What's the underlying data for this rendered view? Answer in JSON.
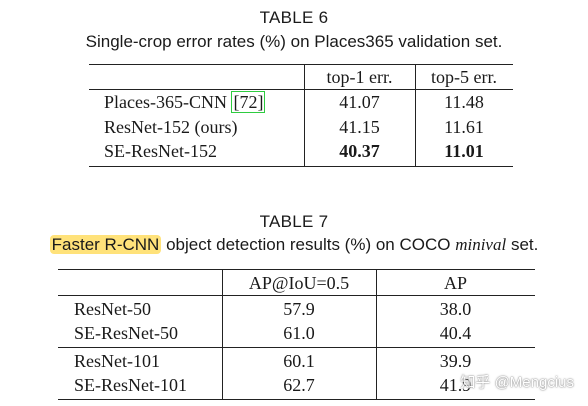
{
  "table6": {
    "label": "TABLE 6",
    "caption": "Single-crop error rates (%) on Places365 validation set.",
    "headers": [
      "",
      "top-1 err.",
      "top-5 err."
    ],
    "rows": [
      {
        "model": "Places-365-CNN",
        "cite": "[72]",
        "top1": "41.07",
        "top5": "11.48"
      },
      {
        "model": "ResNet-152 (ours)",
        "top1": "41.15",
        "top5": "11.61"
      },
      {
        "model": "SE-ResNet-152",
        "top1": "40.37",
        "top5": "11.01"
      }
    ]
  },
  "table7": {
    "label": "TABLE 7",
    "caption_highlight": "Faster R-CNN",
    "caption_mid": "object detection results (%) on COCO",
    "caption_italic": "minival",
    "caption_end": "set.",
    "headers": [
      "",
      "AP@IoU=0.5",
      "AP"
    ],
    "rows": [
      {
        "model": "ResNet-50",
        "ap50": "57.9",
        "ap": "38.0"
      },
      {
        "model": "SE-ResNet-50",
        "ap50": "61.0",
        "ap": "40.4"
      },
      {
        "model": "ResNet-101",
        "ap50": "60.1",
        "ap": "39.9"
      },
      {
        "model": "SE-ResNet-101",
        "ap50": "62.7",
        "ap": "41.9"
      }
    ]
  },
  "watermark": "知乎 @Mengcius",
  "colors": {
    "highlight": "#ffe27a",
    "cite_box": "#2ecc40"
  }
}
